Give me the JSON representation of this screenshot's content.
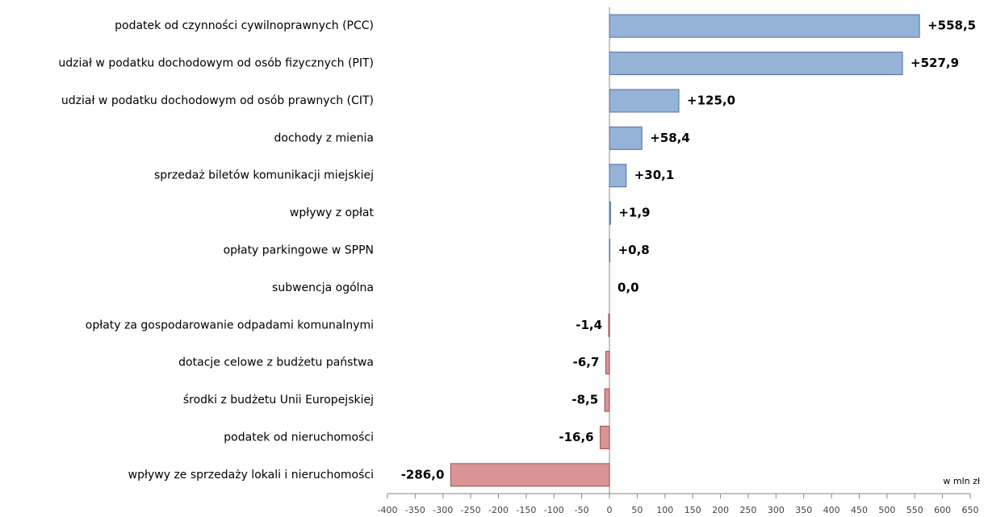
{
  "chart_data": {
    "type": "barh",
    "categories": [
      "podatek od czynności cywilnoprawnych (PCC)",
      "udział w podatku dochodowym od osób fizycznych (PIT)",
      "udział w podatku dochodowym od osób prawnych (CIT)",
      "dochody z mienia",
      "sprzedaż biletów komunikacji miejskiej",
      "wpływy z opłat",
      "opłaty parkingowe w SPPN",
      "subwencja ogólna",
      "opłaty za gospodarowanie odpadami komunalnymi",
      "dotacje celowe z budżetu państwa",
      "środki z budżetu Unii Europejskiej",
      "podatek od nieruchomości",
      "wpływy ze sprzedaży lokali i nieruchomości"
    ],
    "values": [
      558.5,
      527.9,
      125.0,
      58.4,
      30.1,
      1.9,
      0.8,
      0.0,
      -1.4,
      -6.7,
      -8.5,
      -16.6,
      -286.0
    ],
    "value_labels": [
      "+558,5",
      "+527,9",
      "+125,0",
      "+58,4",
      "+30,1",
      "+1,9",
      "+0,8",
      "0,0",
      "-1,4",
      "-6,7",
      "-8,5",
      "-16,6",
      "-286,0"
    ],
    "color": {
      "positive": "#95b3d7",
      "negative": "#d99594"
    },
    "xlim": [
      -400,
      650
    ],
    "xticks": [
      -400,
      -350,
      -300,
      -250,
      -200,
      -150,
      -100,
      -50,
      0,
      50,
      100,
      150,
      200,
      250,
      300,
      350,
      400,
      450,
      500,
      550,
      600,
      650
    ],
    "annotation": "w mln zł"
  }
}
